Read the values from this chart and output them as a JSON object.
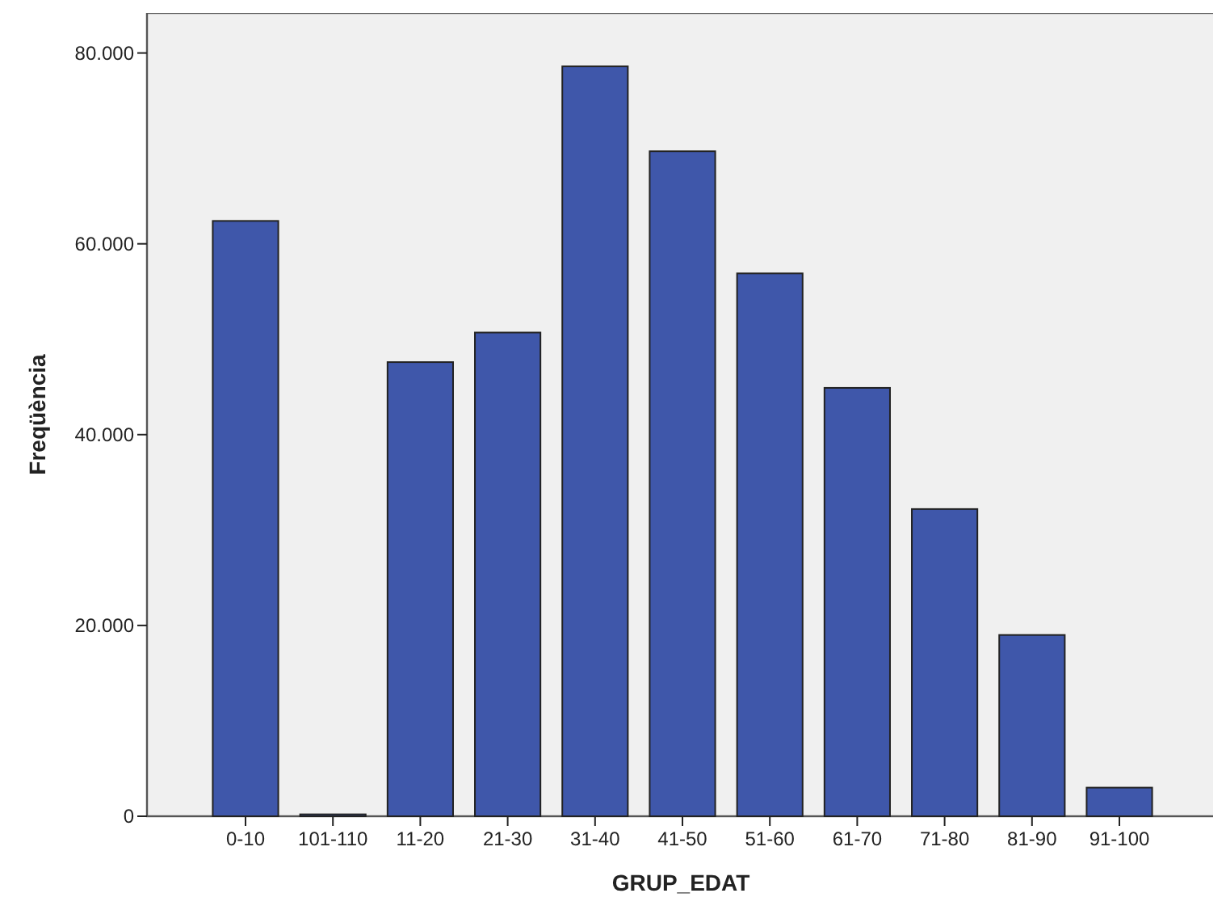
{
  "chart_data": {
    "type": "bar",
    "xlabel": "GRUP_EDAT",
    "ylabel": "Freqüència",
    "categories": [
      "0-10",
      "101-110",
      "11-20",
      "21-30",
      "31-40",
      "41-50",
      "51-60",
      "61-70",
      "71-80",
      "81-90",
      "91-100"
    ],
    "values": [
      62400,
      200,
      47600,
      50700,
      78600,
      69700,
      56900,
      44900,
      32200,
      19000,
      3000
    ],
    "color": "#3f57aa",
    "ylim": [
      0,
      84200
    ],
    "yticks": [
      {
        "value": 0,
        "label": "0"
      },
      {
        "value": 20000,
        "label": "20.000"
      },
      {
        "value": 40000,
        "label": "40.000"
      },
      {
        "value": 60000,
        "label": "60.000"
      },
      {
        "value": 80000,
        "label": "80.000"
      }
    ],
    "grid": false
  }
}
